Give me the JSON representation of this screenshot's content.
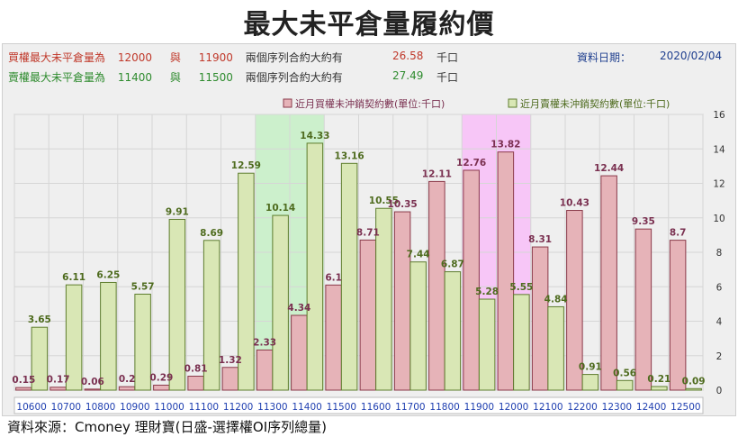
{
  "title": "最大未平倉量履約價",
  "info": {
    "call_row": {
      "label": "買權最大未平倉量為",
      "strike1": "12000",
      "mid": "與",
      "strike2": "11900",
      "desc": "兩個序列合約大約有",
      "value": "26.58",
      "unit": "千口"
    },
    "put_row": {
      "label": "賣權最大未平倉量為",
      "strike1": "11400",
      "mid": "與",
      "strike2": "11500",
      "desc": "兩個序列合約大約有",
      "value": "27.49",
      "unit": "千口"
    },
    "date_label": "資料日期：",
    "date": "2020/02/04"
  },
  "colors": {
    "call": "#e6b3b8",
    "call_stroke": "#8a3a4a",
    "put": "#d9e7b5",
    "put_stroke": "#5e7d2e",
    "highlight_put": "#ccf0cc",
    "highlight_call": "#f7c6f7",
    "call_label": "#7a3050",
    "put_label": "#4e6b1e",
    "axis_label": "#1f3fb0"
  },
  "chart_data": {
    "type": "bar",
    "categories": [
      "10600",
      "10700",
      "10800",
      "10900",
      "11000",
      "11100",
      "11200",
      "11300",
      "11400",
      "11500",
      "11600",
      "11700",
      "11800",
      "11900",
      "12000",
      "12100",
      "12200",
      "12300",
      "12400",
      "12500"
    ],
    "series": [
      {
        "name": "近月買權未沖銷契約數(單位:千口)",
        "values": [
          0.15,
          0.17,
          0.06,
          0.2,
          0.29,
          0.81,
          1.32,
          2.33,
          4.34,
          6.1,
          8.71,
          10.35,
          12.11,
          12.76,
          13.82,
          8.31,
          10.43,
          12.44,
          9.35,
          8.7
        ]
      },
      {
        "name": "近月賣權未沖銷契約數(單位:千口)",
        "values": [
          3.65,
          6.11,
          6.25,
          5.57,
          9.91,
          8.69,
          12.59,
          10.14,
          14.33,
          13.16,
          10.55,
          7.44,
          6.87,
          5.28,
          5.55,
          4.84,
          0.91,
          0.56,
          0.21,
          0.09
        ]
      }
    ],
    "ylim": [
      0,
      16
    ],
    "yticks": [
      "0",
      "2",
      "4",
      "6",
      "8",
      "10",
      "12",
      "14",
      "16"
    ],
    "highlight_categories": {
      "put": "11400",
      "call": "12000"
    },
    "grid": true,
    "legend_position": "top-right"
  },
  "footer": "資料來源：Cmoney 理財寶(日盛-選擇權OI序列總量)"
}
